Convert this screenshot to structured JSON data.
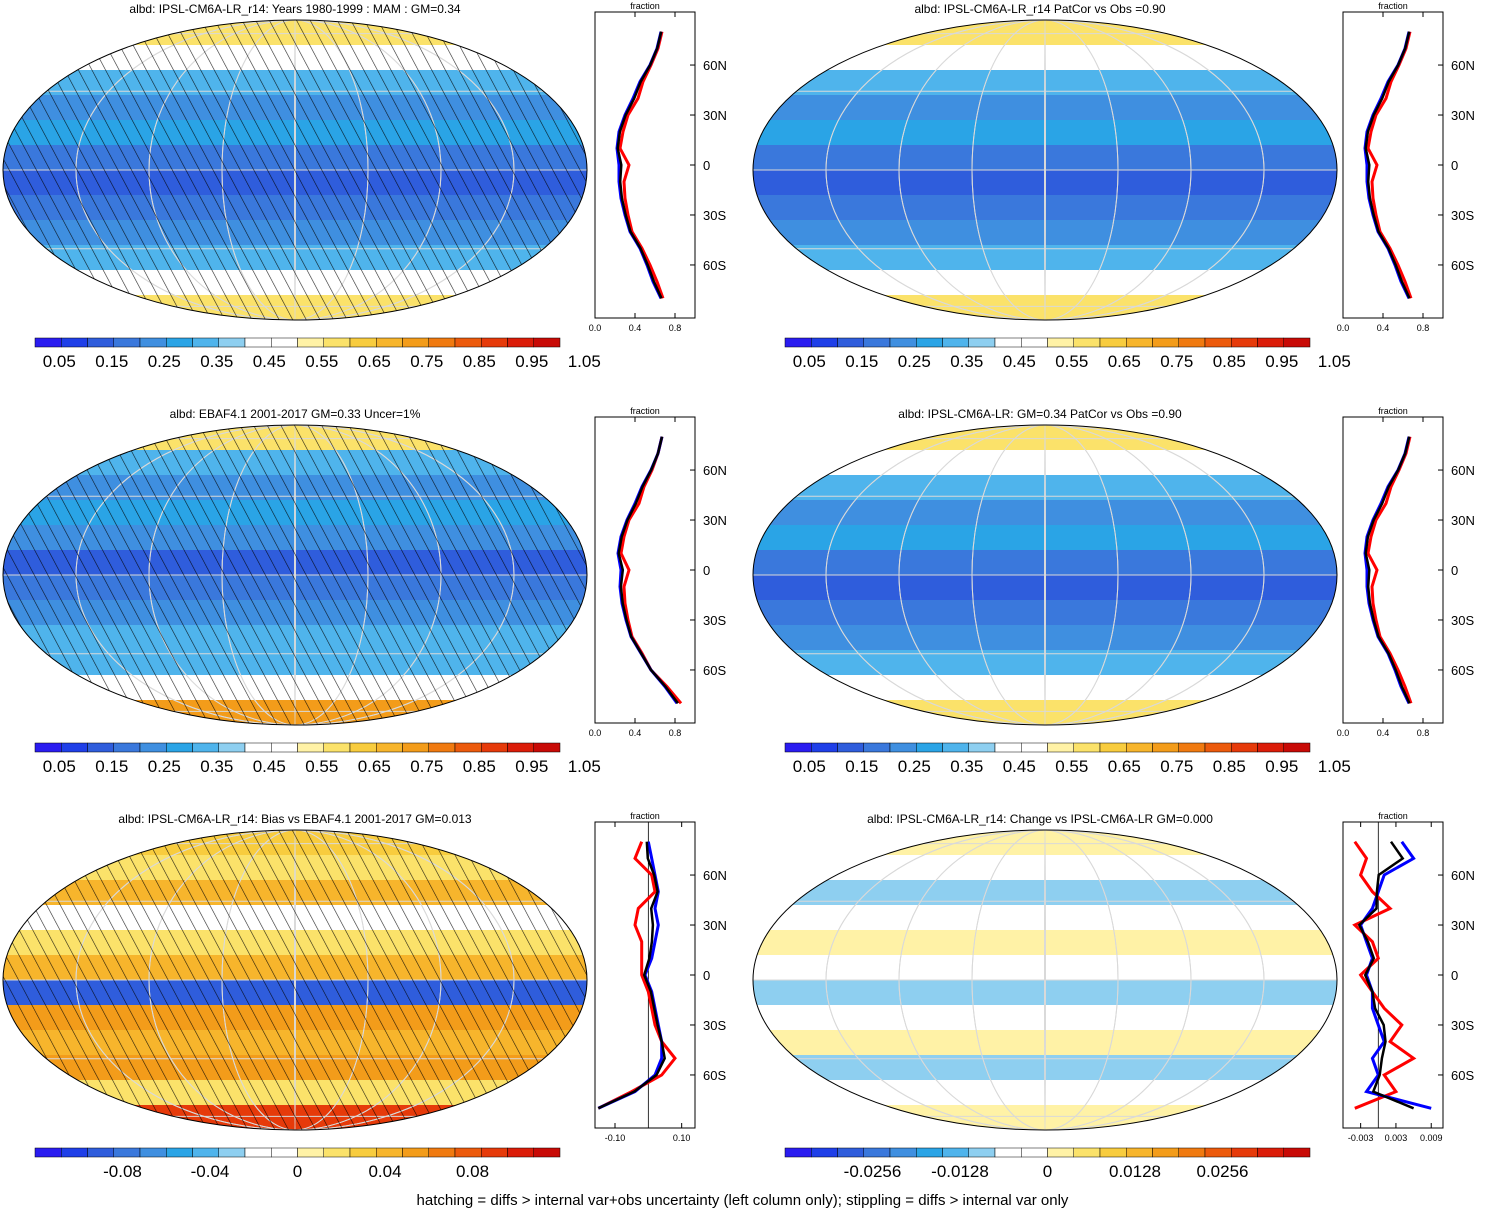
{
  "colors": {
    "abs_palette": [
      "#2a1cf0",
      "#1f3fe8",
      "#2f5ddc",
      "#3a78dc",
      "#3f8fe0",
      "#2aa4e6",
      "#4fb4ec",
      "#8ecff0",
      "#ffffff",
      "#ffffff",
      "#fff2a6",
      "#fbe26a",
      "#f8cc3e",
      "#f7b52c",
      "#f39c1a",
      "#f07a10",
      "#ec5a0c",
      "#e63a0a",
      "#db1c08",
      "#c80a06"
    ],
    "diff_palette": [
      "#2a1cf0",
      "#1f3fe8",
      "#2f5ddc",
      "#3a78dc",
      "#3f8fe0",
      "#2aa4e6",
      "#4fb4ec",
      "#8ecff0",
      "#ffffff",
      "#ffffff",
      "#fff2a6",
      "#fbe26a",
      "#f8cc3e",
      "#f7b52c",
      "#f39c1a",
      "#f07a10",
      "#ec5a0c",
      "#e63a0a",
      "#db1c08",
      "#c80a06"
    ],
    "model_line": "#0000ff",
    "obs_line": "#ff0000",
    "mean_line": "#000000",
    "grid": "#d9d9d9"
  },
  "footnote": "hatching = diffs > internal var+obs uncertainty (left column only); stippling = diffs > internal var only",
  "chart_data": [
    {
      "type": "heatmap",
      "title": "albd: IPSL-CM6A-LR_r14: Years 1980-1999 : MAM : GM=0.34",
      "hatching": true,
      "colorbar_labels": [
        "0.05",
        "0.15",
        "0.25",
        "0.35",
        "0.45",
        "0.55",
        "0.65",
        "0.75",
        "0.85",
        "0.95",
        "1.05"
      ],
      "zonal": {
        "xlabel": "fraction",
        "xticks": [
          "0.0",
          "0.4",
          "0.8"
        ],
        "xlim": [
          0,
          1.0
        ],
        "yticks": [
          "60N",
          "30N",
          "0",
          "30S",
          "60S"
        ],
        "lat": [
          80,
          70,
          60,
          50,
          40,
          30,
          20,
          10,
          0,
          -10,
          -20,
          -30,
          -40,
          -50,
          -60,
          -70,
          -80
        ],
        "model": [
          0.66,
          0.62,
          0.55,
          0.45,
          0.38,
          0.3,
          0.24,
          0.22,
          0.24,
          0.24,
          0.26,
          0.3,
          0.35,
          0.45,
          0.52,
          0.58,
          0.66
        ],
        "obs": [
          0.67,
          0.63,
          0.56,
          0.48,
          0.43,
          0.33,
          0.28,
          0.25,
          0.34,
          0.29,
          0.3,
          0.33,
          0.37,
          0.47,
          0.55,
          0.62,
          0.68
        ]
      }
    },
    {
      "type": "heatmap",
      "title": "albd: IPSL-CM6A-LR_r14 PatCor vs Obs =0.90",
      "hatching": false,
      "colorbar_labels": [
        "0.05",
        "0.15",
        "0.25",
        "0.35",
        "0.45",
        "0.55",
        "0.65",
        "0.75",
        "0.85",
        "0.95",
        "1.05"
      ],
      "zonal": {
        "xlabel": "fraction",
        "xticks": [
          "0.0",
          "0.4",
          "0.8"
        ],
        "xlim": [
          0,
          1.0
        ],
        "yticks": [
          "60N",
          "30N",
          "0",
          "30S",
          "60S"
        ],
        "lat": [
          80,
          70,
          60,
          50,
          40,
          30,
          20,
          10,
          0,
          -10,
          -20,
          -30,
          -40,
          -50,
          -60,
          -70,
          -80
        ],
        "model": [
          0.66,
          0.62,
          0.55,
          0.45,
          0.38,
          0.3,
          0.24,
          0.22,
          0.24,
          0.24,
          0.26,
          0.3,
          0.35,
          0.45,
          0.52,
          0.58,
          0.66
        ],
        "obs": [
          0.67,
          0.63,
          0.56,
          0.48,
          0.43,
          0.33,
          0.28,
          0.25,
          0.34,
          0.29,
          0.3,
          0.33,
          0.37,
          0.47,
          0.55,
          0.62,
          0.68
        ]
      }
    },
    {
      "type": "heatmap",
      "title": "albd: EBAF4.1 2001-2017 GM=0.33 Uncer=1%",
      "hatching": true,
      "colorbar_labels": [
        "0.05",
        "0.15",
        "0.25",
        "0.35",
        "0.45",
        "0.55",
        "0.65",
        "0.75",
        "0.85",
        "0.95",
        "1.05"
      ],
      "zonal": {
        "xlabel": "fraction",
        "xticks": [
          "0.0",
          "0.4",
          "0.8"
        ],
        "xlim": [
          0,
          1.0
        ],
        "yticks": [
          "60N",
          "30N",
          "0",
          "30S",
          "60S"
        ],
        "lat": [
          80,
          70,
          60,
          50,
          40,
          30,
          20,
          10,
          0,
          -10,
          -20,
          -30,
          -40,
          -50,
          -60,
          -70,
          -80
        ],
        "model": [
          0.67,
          0.63,
          0.56,
          0.47,
          0.4,
          0.32,
          0.26,
          0.23,
          0.26,
          0.25,
          0.27,
          0.31,
          0.36,
          0.46,
          0.56,
          0.7,
          0.82
        ],
        "obs": [
          0.67,
          0.63,
          0.57,
          0.49,
          0.44,
          0.34,
          0.29,
          0.26,
          0.34,
          0.29,
          0.3,
          0.33,
          0.37,
          0.47,
          0.56,
          0.72,
          0.86
        ]
      }
    },
    {
      "type": "heatmap",
      "title": "albd: IPSL-CM6A-LR: GM=0.34 PatCor vs Obs =0.90",
      "hatching": false,
      "colorbar_labels": [
        "0.05",
        "0.15",
        "0.25",
        "0.35",
        "0.45",
        "0.55",
        "0.65",
        "0.75",
        "0.85",
        "0.95",
        "1.05"
      ],
      "zonal": {
        "xlabel": "fraction",
        "xticks": [
          "0.0",
          "0.4",
          "0.8"
        ],
        "xlim": [
          0,
          1.0
        ],
        "yticks": [
          "60N",
          "30N",
          "0",
          "30S",
          "60S"
        ],
        "lat": [
          80,
          70,
          60,
          50,
          40,
          30,
          20,
          10,
          0,
          -10,
          -20,
          -30,
          -40,
          -50,
          -60,
          -70,
          -80
        ],
        "model": [
          0.66,
          0.62,
          0.55,
          0.45,
          0.38,
          0.3,
          0.24,
          0.22,
          0.24,
          0.24,
          0.26,
          0.3,
          0.35,
          0.45,
          0.52,
          0.58,
          0.66
        ],
        "obs": [
          0.67,
          0.63,
          0.56,
          0.48,
          0.43,
          0.33,
          0.28,
          0.25,
          0.34,
          0.29,
          0.3,
          0.33,
          0.37,
          0.47,
          0.55,
          0.62,
          0.68
        ]
      }
    },
    {
      "type": "heatmap",
      "title": "albd: IPSL-CM6A-LR_r14: Bias vs EBAF4.1 2001-2017 GM=0.013",
      "hatching": true,
      "colorbar_labels": [
        "-0.08",
        "-0.04",
        "0",
        "0.04",
        "0.08"
      ],
      "zonal": {
        "xlabel": "fraction",
        "xticks": [
          "-0.10",
          "0.10"
        ],
        "xlim": [
          -0.16,
          0.14
        ],
        "yticks": [
          "60N",
          "30N",
          "0",
          "30S",
          "60S"
        ],
        "lat": [
          80,
          70,
          60,
          50,
          40,
          30,
          20,
          10,
          0,
          -10,
          -20,
          -30,
          -40,
          -50,
          -60,
          -70,
          -80
        ],
        "model": [
          0.0,
          0.01,
          0.02,
          0.03,
          0.02,
          0.03,
          0.02,
          0.01,
          -0.01,
          0.01,
          0.02,
          0.03,
          0.04,
          0.04,
          0.02,
          -0.04,
          -0.15
        ],
        "obs": [
          -0.02,
          -0.04,
          0.01,
          0.02,
          -0.03,
          -0.04,
          -0.02,
          -0.02,
          -0.02,
          0.0,
          0.01,
          0.02,
          0.04,
          0.08,
          0.04,
          -0.05,
          -0.15
        ]
      }
    },
    {
      "type": "heatmap",
      "title": "albd: IPSL-CM6A-LR_r14: Change vs IPSL-CM6A-LR GM=0.000",
      "hatching": false,
      "colorbar_labels": [
        "-0.0256",
        "-0.0128",
        "0",
        "0.0128",
        "0.0256"
      ],
      "zonal": {
        "xlabel": "fraction",
        "xticks": [
          "-0.003",
          "0.003",
          "0.009"
        ],
        "xlim": [
          -0.006,
          0.011
        ],
        "yticks": [
          "60N",
          "30N",
          "0",
          "30S",
          "60S"
        ],
        "lat": [
          80,
          70,
          60,
          50,
          40,
          30,
          20,
          10,
          0,
          -10,
          -20,
          -30,
          -40,
          -50,
          -60,
          -70,
          -80
        ],
        "model": [
          0.004,
          0.006,
          0.001,
          0.0,
          -0.001,
          -0.003,
          -0.002,
          -0.001,
          -0.002,
          -0.001,
          -0.001,
          0.0,
          0.001,
          -0.001,
          0.0,
          -0.002,
          0.009
        ],
        "obs": [
          -0.004,
          -0.002,
          -0.003,
          -0.001,
          0.002,
          -0.004,
          -0.001,
          0.0,
          -0.003,
          -0.001,
          0.001,
          0.004,
          0.002,
          0.006,
          0.001,
          0.003,
          -0.004
        ]
      }
    }
  ]
}
